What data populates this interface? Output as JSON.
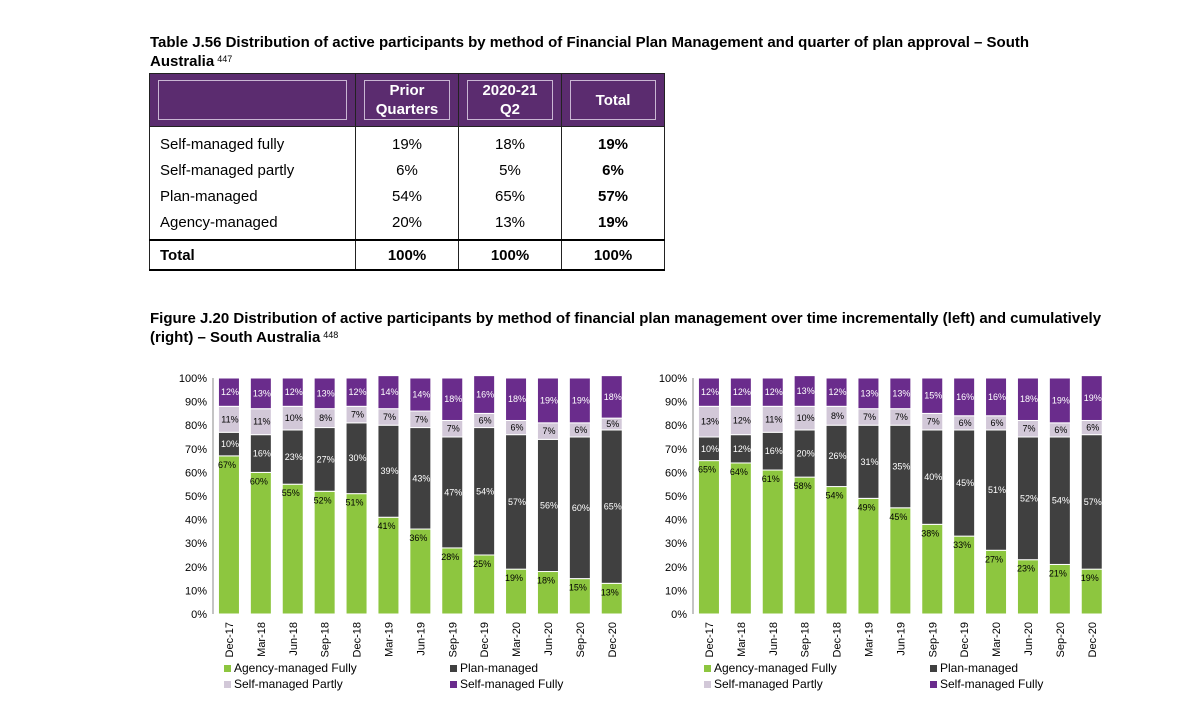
{
  "table": {
    "caption": "Table J.56 Distribution of active participants by method of Financial Plan Management and quarter of plan approval – South Australia",
    "footnote": "447",
    "headers": [
      {
        "line1": "",
        "line2": ""
      },
      {
        "line1": "Prior",
        "line2": "Quarters"
      },
      {
        "line1": "2020-21",
        "line2": "Q2"
      },
      {
        "line1": "Total",
        "line2": ""
      }
    ],
    "rows": [
      {
        "label": "Self-managed fully",
        "prior": "19%",
        "q2": "18%",
        "total": "19%"
      },
      {
        "label": "Self-managed partly",
        "prior": "6%",
        "q2": "5%",
        "total": "6%"
      },
      {
        "label": "Plan-managed",
        "prior": "54%",
        "q2": "65%",
        "total": "57%"
      },
      {
        "label": "Agency-managed",
        "prior": "20%",
        "q2": "13%",
        "total": "19%"
      }
    ],
    "total_row": {
      "label": "Total",
      "prior": "100%",
      "q2": "100%",
      "total": "100%"
    }
  },
  "figure": {
    "caption": "Figure J.20 Distribution of active participants by method of financial plan management over time incrementally (left) and cumulatively (right) – South Australia",
    "footnote": "448"
  },
  "chart_data": [
    {
      "type": "bar",
      "stacked": true,
      "categories": [
        "Dec-17",
        "Mar-18",
        "Jun-18",
        "Sep-18",
        "Dec-18",
        "Mar-19",
        "Jun-19",
        "Sep-19",
        "Dec-19",
        "Mar-20",
        "Jun-20",
        "Sep-20",
        "Dec-20"
      ],
      "y_ticks": [
        "0%",
        "10%",
        "20%",
        "30%",
        "40%",
        "50%",
        "60%",
        "70%",
        "80%",
        "90%",
        "100%"
      ],
      "ylim": [
        0,
        100
      ],
      "series": [
        {
          "name": "Agency-managed Fully",
          "color": "#8dc63f",
          "values": [
            67,
            60,
            55,
            52,
            51,
            41,
            36,
            28,
            25,
            19,
            18,
            15,
            13
          ]
        },
        {
          "name": "Plan-managed",
          "color": "#404040",
          "values": [
            10,
            16,
            23,
            27,
            30,
            39,
            43,
            47,
            54,
            57,
            56,
            60,
            65
          ]
        },
        {
          "name": "Self-managed Partly",
          "color": "#d2c8d8",
          "values": [
            11,
            11,
            10,
            8,
            7,
            7,
            7,
            7,
            6,
            6,
            7,
            6,
            5
          ]
        },
        {
          "name": "Self-managed Fully",
          "color": "#6a2c8c",
          "values": [
            12,
            13,
            12,
            13,
            12,
            14,
            14,
            18,
            16,
            18,
            19,
            19,
            18
          ]
        }
      ],
      "legend_position": "bottom"
    },
    {
      "type": "bar",
      "stacked": true,
      "categories": [
        "Dec-17",
        "Mar-18",
        "Jun-18",
        "Sep-18",
        "Dec-18",
        "Mar-19",
        "Jun-19",
        "Sep-19",
        "Dec-19",
        "Mar-20",
        "Jun-20",
        "Sep-20",
        "Dec-20"
      ],
      "y_ticks": [
        "0%",
        "10%",
        "20%",
        "30%",
        "40%",
        "50%",
        "60%",
        "70%",
        "80%",
        "90%",
        "100%"
      ],
      "ylim": [
        0,
        100
      ],
      "series": [
        {
          "name": "Agency-managed Fully",
          "color": "#8dc63f",
          "values": [
            65,
            64,
            61,
            58,
            54,
            49,
            45,
            38,
            33,
            27,
            23,
            21,
            19
          ]
        },
        {
          "name": "Plan-managed",
          "color": "#404040",
          "values": [
            10,
            12,
            16,
            20,
            26,
            31,
            35,
            40,
            45,
            51,
            52,
            54,
            57
          ]
        },
        {
          "name": "Self-managed Partly",
          "color": "#d2c8d8",
          "values": [
            13,
            12,
            11,
            10,
            8,
            7,
            7,
            7,
            6,
            6,
            7,
            6,
            6
          ]
        },
        {
          "name": "Self-managed Fully",
          "color": "#6a2c8c",
          "values": [
            12,
            12,
            12,
            13,
            12,
            13,
            13,
            15,
            16,
            16,
            18,
            19,
            19
          ]
        }
      ],
      "legend_position": "bottom"
    }
  ]
}
